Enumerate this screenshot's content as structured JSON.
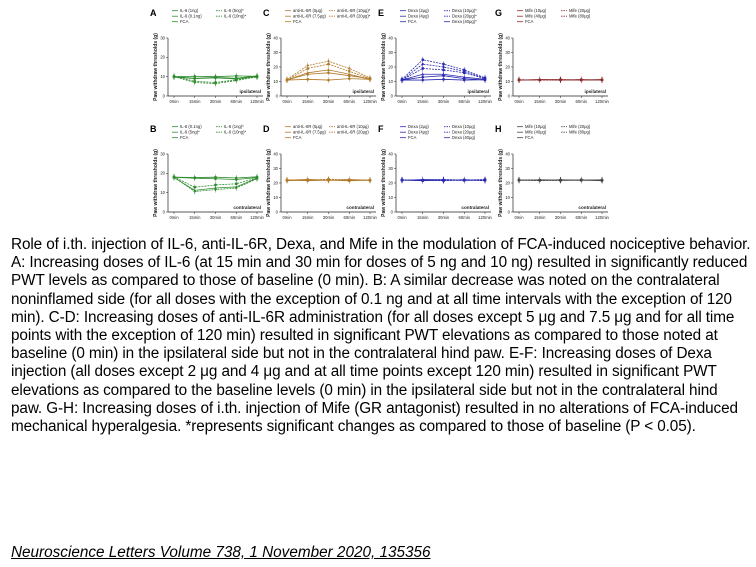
{
  "figure": {
    "x_ticks": [
      "0min",
      "15min",
      "30min",
      "60min",
      "120min"
    ],
    "y_axis_label": "Paw withdraw thresholds (g)",
    "panels": [
      {
        "letter": "A",
        "side": "ipsilateral",
        "legend": [
          "IL-6 (1ng)",
          "IL-6 (5ng)*",
          "IL-6 (0.1ng)",
          "IL-6 (10ng)*",
          "FCA"
        ],
        "color": "#2e8b2e",
        "ylim": [
          0,
          30
        ],
        "yticks": [
          "0",
          "10",
          "20",
          "30"
        ],
        "series": [
          [
            10,
            9.2,
            9.6,
            9.2,
            10.4
          ],
          [
            10.2,
            7.6,
            7.0,
            8.4,
            9.8
          ],
          [
            9.8,
            9.0,
            9.4,
            8.8,
            10.2
          ],
          [
            10,
            7.0,
            6.4,
            8.0,
            10.0
          ],
          [
            10,
            10.2,
            10.0,
            10.4,
            10.2
          ]
        ]
      },
      {
        "letter": "B",
        "side": "contralateral",
        "legend": [
          "IL-6 (0.1ng)",
          "IL-6 (1ng)*",
          "IL-6 (5ng)*",
          "IL-6 (10ng)*",
          "FCA"
        ],
        "color": "#2e8b2e",
        "ylim": [
          0,
          30
        ],
        "yticks": [
          "0",
          "10",
          "20",
          "30"
        ],
        "series": [
          [
            18,
            17.5,
            17.2,
            16.8,
            17.8
          ],
          [
            18.2,
            12.8,
            14,
            14.6,
            17.6
          ],
          [
            17.8,
            11.2,
            12.4,
            13,
            17.4
          ],
          [
            18,
            10.6,
            11.6,
            12.4,
            17.2
          ],
          [
            18,
            17.8,
            18,
            17.6,
            18.2
          ]
        ]
      },
      {
        "letter": "C",
        "side": "ipsilateral",
        "legend": [
          "anti-IL-6R (5μg)",
          "anti-IL-6R (10μg)*",
          "anti-IL-6R (7.5μg)",
          "anti-IL-6R (20μg)*",
          "FCA"
        ],
        "color": "#b07a2a",
        "ylim": [
          0,
          40
        ],
        "yticks": [
          "0",
          "10",
          "20",
          "30",
          "40"
        ],
        "series": [
          [
            11,
            15,
            16,
            14,
            12
          ],
          [
            11,
            19,
            22,
            17,
            12
          ],
          [
            11,
            16,
            18,
            15,
            11.5
          ],
          [
            11.5,
            21,
            24,
            19,
            12.5
          ],
          [
            11,
            11.5,
            11,
            12,
            11.5
          ]
        ]
      },
      {
        "letter": "D",
        "side": "contralateral",
        "legend": [
          "anti-IL-6R (5μg)",
          "anti-IL-6R (10μg)",
          "anti-IL-6R (7.5μg)",
          "anti-IL-6R (20μg)",
          "FCA"
        ],
        "color": "#b07a2a",
        "ylim": [
          0,
          40
        ],
        "yticks": [
          "0",
          "10",
          "20",
          "30",
          "40"
        ],
        "series": [
          [
            22,
            22.5,
            22,
            21.5,
            22
          ],
          [
            22,
            21.8,
            22.6,
            22.2,
            21.8
          ],
          [
            21.6,
            22.2,
            21.8,
            22.4,
            22
          ],
          [
            22.2,
            22,
            22.4,
            21.8,
            22.2
          ],
          [
            22,
            21.6,
            22,
            22.2,
            21.8
          ]
        ]
      },
      {
        "letter": "E",
        "side": "ipsilateral",
        "legend": [
          "Dexa (2μg)",
          "Dexa (10μg)*",
          "Dexa (4μg)",
          "Dexa (20μg)*",
          "FCA",
          "Dexa (40μg)*"
        ],
        "color": "#2a2ab0",
        "ylim": [
          0,
          40
        ],
        "yticks": [
          "0",
          "10",
          "20",
          "30",
          "40"
        ],
        "series": [
          [
            11,
            13,
            14,
            12,
            11
          ],
          [
            11,
            19,
            18,
            16,
            12
          ],
          [
            11,
            15,
            15,
            13,
            11.5
          ],
          [
            11,
            22,
            20,
            17,
            12
          ],
          [
            11,
            11,
            11.5,
            11,
            11.2
          ],
          [
            11.5,
            25,
            22,
            18,
            12.5
          ]
        ]
      },
      {
        "letter": "F",
        "side": "contralateral",
        "legend": [
          "Dexa (2μg)",
          "Dexa (10μg)",
          "Dexa (4μg)",
          "Dexa (20μg)",
          "FCA",
          "Dexa (40μg)"
        ],
        "color": "#2a2ab0",
        "ylim": [
          0,
          40
        ],
        "yticks": [
          "0",
          "10",
          "20",
          "30",
          "40"
        ],
        "series": [
          [
            22,
            21.6,
            22,
            22.2,
            21.8
          ],
          [
            22.2,
            22,
            21.6,
            22,
            22.4
          ],
          [
            21.8,
            22.4,
            22.2,
            21.8,
            22
          ],
          [
            22,
            21.8,
            22.4,
            22,
            21.6
          ],
          [
            22,
            22,
            21.8,
            22.2,
            22
          ],
          [
            22.2,
            21.6,
            22,
            21.8,
            22.2
          ]
        ]
      },
      {
        "letter": "G",
        "side": "ipsilateral",
        "legend": [
          "Mife (10μg)",
          "Mife (20μg)",
          "Mife (40μg)",
          "Mife (80μg)",
          "FCA"
        ],
        "color": "#8a2a2a",
        "ylim": [
          0,
          40
        ],
        "yticks": [
          "0",
          "10",
          "20",
          "30",
          "40"
        ],
        "series": [
          [
            11,
            11.2,
            11,
            11.4,
            11
          ],
          [
            11.2,
            11,
            11.4,
            11,
            11.2
          ],
          [
            11,
            11.4,
            11.2,
            11,
            11.4
          ],
          [
            11.2,
            11,
            11,
            11.2,
            11
          ],
          [
            11,
            11.2,
            11.2,
            11,
            11.2
          ]
        ]
      },
      {
        "letter": "H",
        "side": "contralateral",
        "legend": [
          "Mife (10μg)",
          "Mife (20μg)",
          "Mife (40μg)",
          "Mife (80μg)",
          "FCA"
        ],
        "color": "#444444",
        "ylim": [
          0,
          40
        ],
        "yticks": [
          "0",
          "10",
          "20",
          "30",
          "40"
        ],
        "series": [
          [
            22,
            21.8,
            22.2,
            22,
            21.6
          ],
          [
            22.2,
            22,
            21.8,
            22.2,
            22
          ],
          [
            21.8,
            22.2,
            22,
            21.8,
            22.2
          ],
          [
            22,
            21.6,
            22,
            22.2,
            21.8
          ],
          [
            22,
            22,
            21.8,
            22,
            22
          ]
        ]
      }
    ]
  },
  "caption": {
    "text": "Role of i.th. injection of IL-6, anti-IL-6R, Dexa, and Mife in the modulation of FCA-induced nociceptive behavior. A: Increasing doses of IL-6 (at 15 min and 30 min for doses of 5 ng and 10 ng) resulted in significantly reduced PWT levels as compared to those of baseline (0 min). B: A similar decrease was noted on the contralateral noninflamed side (for all doses with the exception of 0.1 ng and at all time intervals with the exception of 120 min). C-D: Increasing doses of anti-IL-6R administration (for all doses except 5 μg and 7.5 μg and for all time points with the exception of 120 min) resulted in significant PWT elevations as compared to those noted at baseline (0 min) in the ipsilateral side but not in the contralateral hind paw. E-F: Increasing doses of Dexa injection (all doses except 2 μg and 4 μg and at all time points except 120 min) resulted in significant PWT elevations as compared to the baseline levels (0 min) in the ipsilateral side but not in the contralateral hind paw. G-H: Increasing doses of i.th. injection of Mife (GR antagonist) resulted in no alterations of FCA-induced mechanical hyperalgesia. *represents significant changes as compared to those of baseline (P < 0.05).",
    "citation": "Neuroscience Letters Volume 738, 1 November 2020, 135356"
  }
}
